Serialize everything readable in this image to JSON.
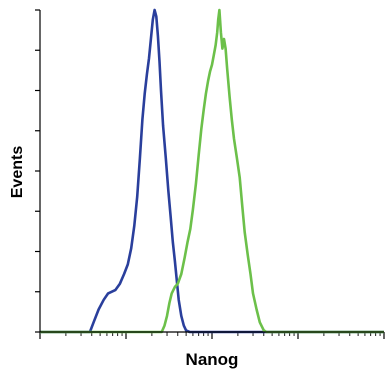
{
  "chart_data": {
    "type": "line",
    "title": "",
    "xlabel": "Nanog",
    "ylabel": "Events",
    "x_scale": "log",
    "xlim": [
      1,
      10000
    ],
    "ylim": [
      0,
      100
    ],
    "grid": false,
    "legend": "none",
    "series": [
      {
        "color": "#2a3f9c",
        "points": [
          [
            1,
            0
          ],
          [
            3.8,
            0
          ],
          [
            4.2,
            3
          ],
          [
            4.8,
            7
          ],
          [
            5.5,
            10
          ],
          [
            6.2,
            12
          ],
          [
            7.5,
            13
          ],
          [
            8.5,
            15
          ],
          [
            9.5,
            18
          ],
          [
            10.5,
            21
          ],
          [
            11.5,
            26
          ],
          [
            12.5,
            33
          ],
          [
            13.5,
            42
          ],
          [
            14.5,
            54
          ],
          [
            15.5,
            66
          ],
          [
            16.5,
            74
          ],
          [
            17.5,
            80
          ],
          [
            18.5,
            85
          ],
          [
            19.5,
            91
          ],
          [
            20.5,
            97
          ],
          [
            21.5,
            100
          ],
          [
            22.5,
            98
          ],
          [
            23.5,
            92
          ],
          [
            24.5,
            84
          ],
          [
            25.5,
            75
          ],
          [
            27,
            64
          ],
          [
            29,
            54
          ],
          [
            31,
            44
          ],
          [
            33,
            36
          ],
          [
            35,
            28
          ],
          [
            37,
            22
          ],
          [
            39,
            16
          ],
          [
            41,
            10
          ],
          [
            44,
            5
          ],
          [
            47,
            2
          ],
          [
            50,
            0.5
          ],
          [
            55,
            0
          ],
          [
            10000,
            0
          ]
        ]
      },
      {
        "color": "#6cc04a",
        "points": [
          [
            1,
            0
          ],
          [
            26,
            0
          ],
          [
            28,
            2
          ],
          [
            30,
            5
          ],
          [
            32,
            9
          ],
          [
            34,
            12
          ],
          [
            37,
            14
          ],
          [
            40,
            15
          ],
          [
            44,
            18
          ],
          [
            48,
            23
          ],
          [
            52,
            28
          ],
          [
            56,
            32
          ],
          [
            60,
            38
          ],
          [
            65,
            46
          ],
          [
            70,
            55
          ],
          [
            75,
            63
          ],
          [
            80,
            69
          ],
          [
            85,
            74
          ],
          [
            90,
            78
          ],
          [
            95,
            81
          ],
          [
            100,
            83
          ],
          [
            105,
            86
          ],
          [
            110,
            89
          ],
          [
            115,
            93
          ],
          [
            118,
            97
          ],
          [
            122,
            100
          ],
          [
            127,
            93
          ],
          [
            132,
            88
          ],
          [
            138,
            91
          ],
          [
            144,
            88
          ],
          [
            150,
            82
          ],
          [
            160,
            73
          ],
          [
            170,
            66
          ],
          [
            180,
            60
          ],
          [
            195,
            54
          ],
          [
            210,
            48
          ],
          [
            225,
            39
          ],
          [
            240,
            31
          ],
          [
            260,
            24
          ],
          [
            280,
            18
          ],
          [
            300,
            12
          ],
          [
            330,
            7
          ],
          [
            360,
            3
          ],
          [
            400,
            0.5
          ],
          [
            430,
            0
          ],
          [
            10000,
            0
          ]
        ]
      }
    ]
  }
}
